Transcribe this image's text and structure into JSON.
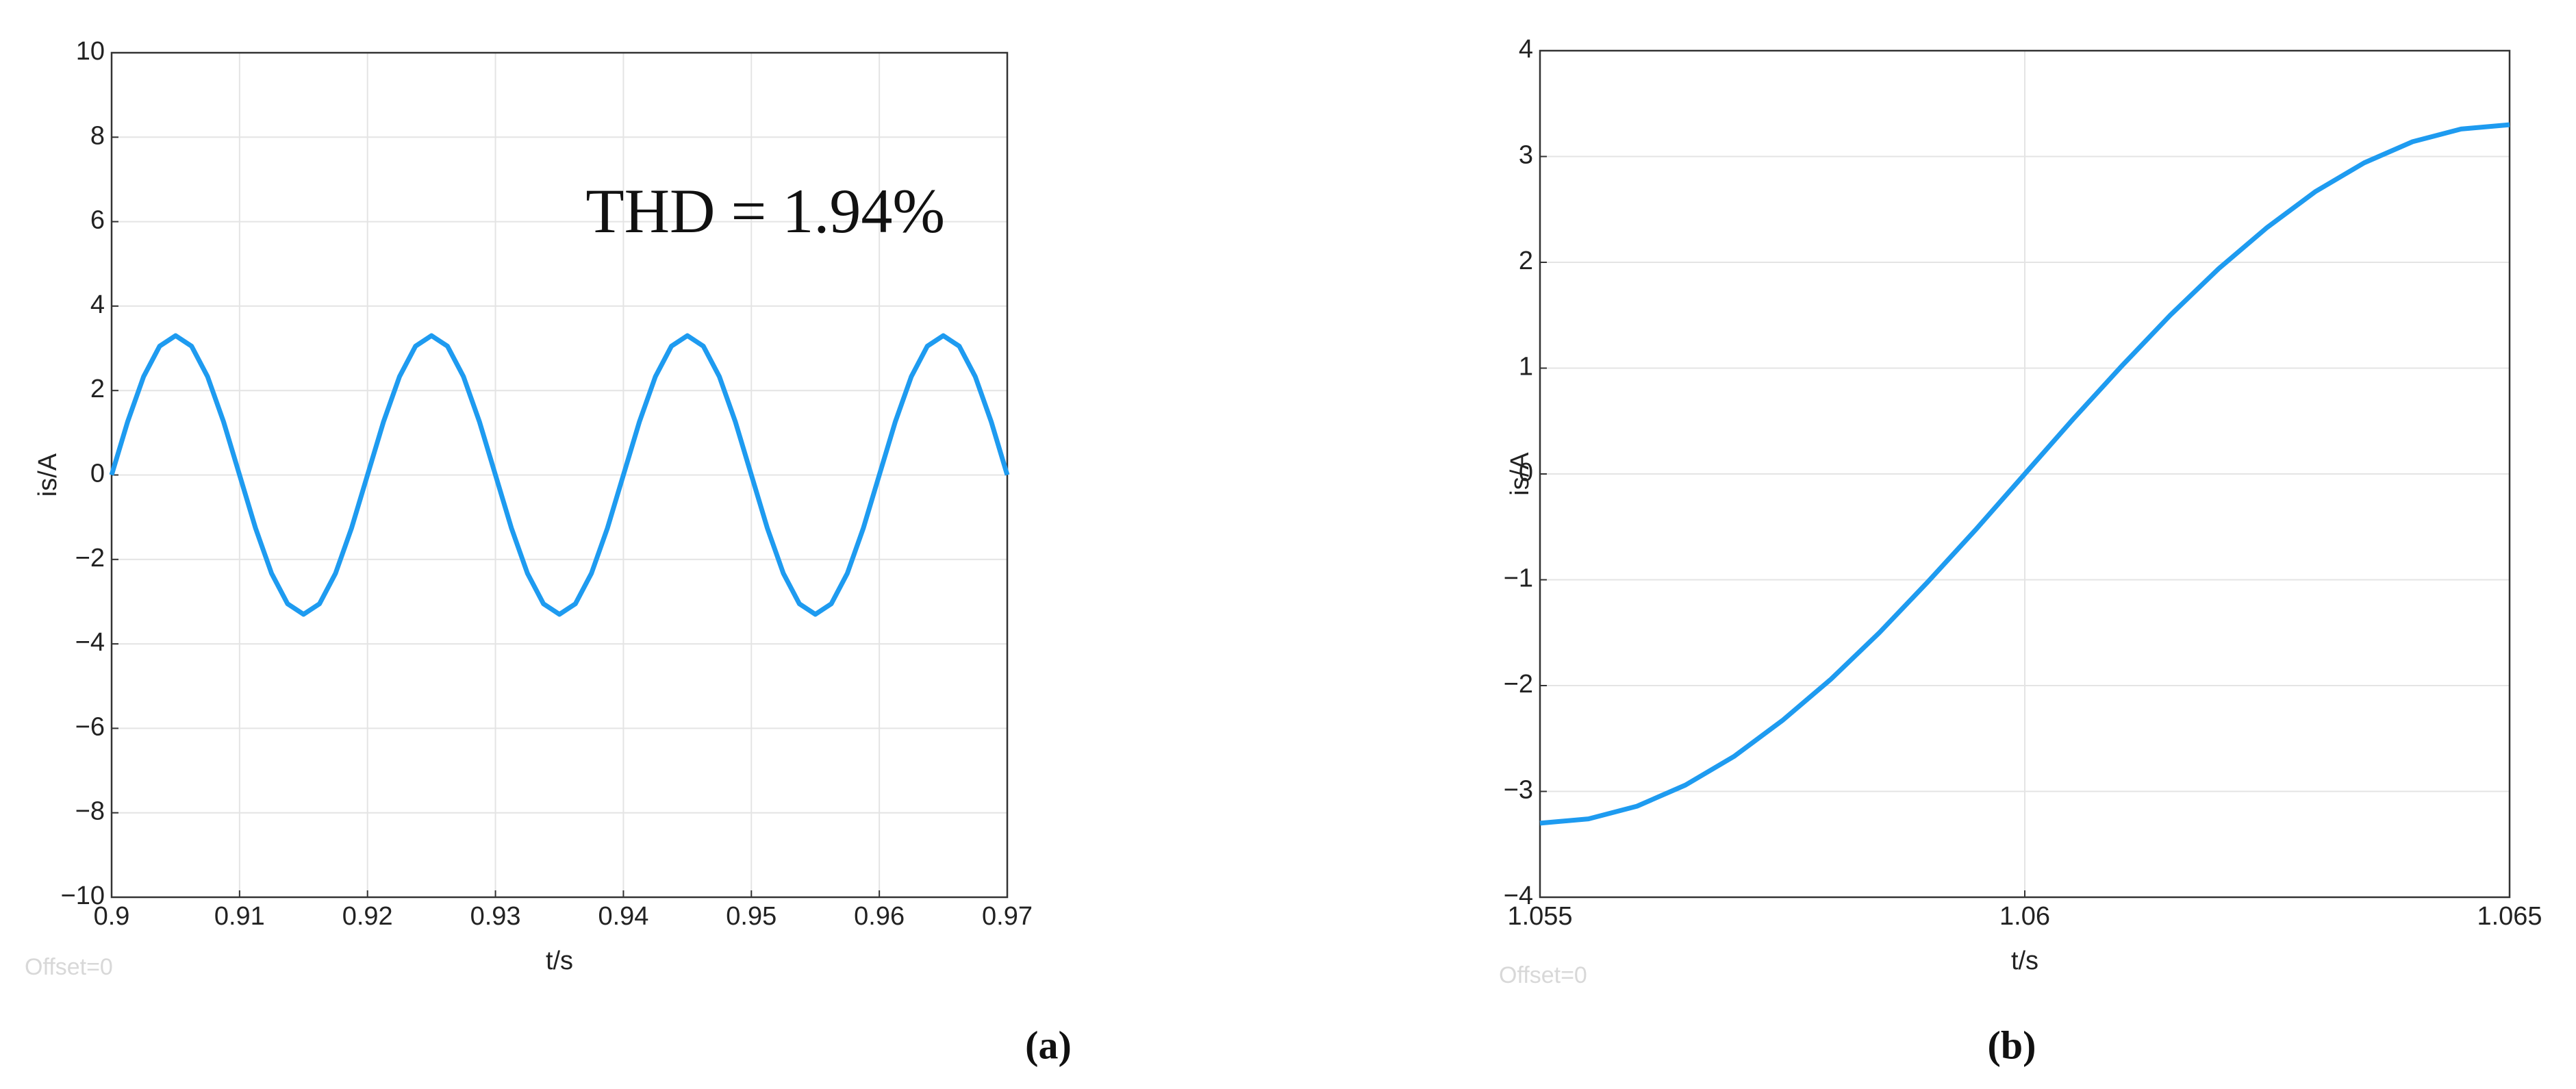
{
  "chart_data": [
    {
      "type": "line",
      "caption": "(a)",
      "xlabel": "t/s",
      "ylabel": "is/A",
      "annotations": [
        "THD = 1.94%",
        "Offset=0"
      ],
      "x": [
        0.9,
        0.90125,
        0.9025,
        0.90375,
        0.905,
        0.90625,
        0.9075,
        0.90875,
        0.91,
        0.91125,
        0.9125,
        0.91375,
        0.915,
        0.91625,
        0.9175,
        0.91875,
        0.92,
        0.92125,
        0.9225,
        0.92375,
        0.925,
        0.92625,
        0.9275,
        0.92875,
        0.93,
        0.93125,
        0.9325,
        0.93375,
        0.935,
        0.93625,
        0.9375,
        0.93875,
        0.94,
        0.94125,
        0.9425,
        0.94375,
        0.945,
        0.94625,
        0.9475,
        0.94875,
        0.95,
        0.95125,
        0.9525,
        0.95375,
        0.955,
        0.95625,
        0.9575,
        0.95875,
        0.96,
        0.96125,
        0.9625,
        0.96375,
        0.965,
        0.96625,
        0.9675,
        0.96875,
        0.97
      ],
      "series": [
        {
          "color": "#1e9bf0",
          "values": [
            0,
            1.26,
            2.33,
            3.05,
            3.3,
            3.05,
            2.33,
            1.26,
            0,
            -1.26,
            -2.33,
            -3.05,
            -3.3,
            -3.05,
            -2.33,
            -1.26,
            0,
            1.26,
            2.33,
            3.05,
            3.3,
            3.05,
            2.33,
            1.26,
            0,
            -1.26,
            -2.33,
            -3.05,
            -3.3,
            -3.05,
            -2.33,
            -1.26,
            0,
            1.26,
            2.33,
            3.05,
            3.3,
            3.05,
            2.33,
            1.26,
            0,
            -1.26,
            -2.33,
            -3.05,
            -3.3,
            -3.05,
            -2.33,
            -1.26,
            0,
            1.26,
            2.33,
            3.05,
            3.3,
            3.05,
            2.33,
            1.26,
            0
          ]
        }
      ],
      "xlim": [
        0.9,
        0.97
      ],
      "xticks": [
        0.9,
        0.91,
        0.92,
        0.93,
        0.94,
        0.95,
        0.96,
        0.97
      ],
      "ylim": [
        -10,
        10
      ],
      "yticks": [
        {
          "value": -10,
          "label": "−10"
        },
        {
          "value": -8,
          "label": "−8"
        },
        {
          "value": -6,
          "label": "−6"
        },
        {
          "value": -4,
          "label": "−4"
        },
        {
          "value": -2,
          "label": "−2"
        },
        0,
        2,
        4,
        6,
        8,
        10
      ],
      "grid": true
    },
    {
      "type": "line",
      "caption": "(b)",
      "xlabel": "t/s",
      "ylabel": "is/A",
      "annotations": [
        "Offset=0"
      ],
      "x": [
        1.055,
        1.0555,
        1.056,
        1.0565,
        1.057,
        1.0575,
        1.058,
        1.0585,
        1.059,
        1.0595,
        1.06,
        1.0605,
        1.061,
        1.0615,
        1.062,
        1.0625,
        1.063,
        1.0635,
        1.064,
        1.0645,
        1.065
      ],
      "series": [
        {
          "color": "#1e9bf0",
          "values": [
            -3.3,
            -3.26,
            -3.14,
            -2.94,
            -2.67,
            -2.33,
            -1.94,
            -1.5,
            -1.02,
            -0.52,
            0,
            0.52,
            1.02,
            1.5,
            1.94,
            2.33,
            2.67,
            2.94,
            3.14,
            3.26,
            3.3
          ]
        }
      ],
      "xlim": [
        1.055,
        1.065
      ],
      "xticks": [
        1.055,
        1.06,
        1.065
      ],
      "ylim": [
        -4,
        4
      ],
      "yticks": [
        {
          "value": -4,
          "label": "−4"
        },
        {
          "value": -3,
          "label": "−3"
        },
        {
          "value": -2,
          "label": "−2"
        },
        {
          "value": -1,
          "label": "−1"
        },
        0,
        1,
        2,
        3,
        4
      ],
      "grid": true
    }
  ]
}
